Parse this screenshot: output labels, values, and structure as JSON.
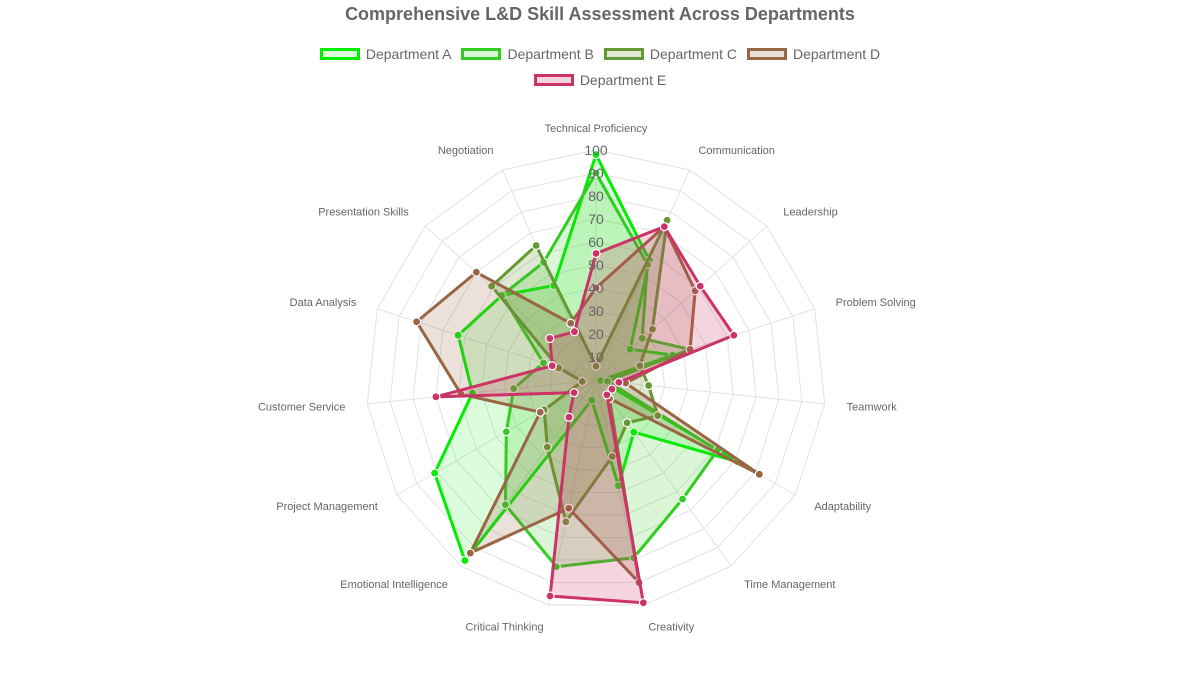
{
  "chart_data": {
    "type": "radar",
    "title": "Comprehensive L&D Skill Assessment Across Departments",
    "categories": [
      "Technical Proficiency",
      "Communication",
      "Leadership",
      "Problem Solving",
      "Teamwork",
      "Adaptability",
      "Time Management",
      "Creativity",
      "Critical Thinking",
      "Emotional Intelligence",
      "Project Management",
      "Customer Service",
      "Data Analysis",
      "Presentation Skills",
      "Negotiation"
    ],
    "r_range": [
      0,
      100
    ],
    "ticks": [
      10,
      20,
      30,
      40,
      50,
      60,
      70,
      80,
      90,
      100
    ],
    "grid": true,
    "legend_position": "top",
    "series": [
      {
        "name": "Department A",
        "color": "#00ee00",
        "fill": "rgba(0,238,0,0.14)",
        "values": [
          98,
          57,
          20,
          35,
          2,
          71,
          28,
          47,
          9,
          97,
          81,
          54,
          63,
          55,
          45
        ]
      },
      {
        "name": "Department B",
        "color": "#33cc22",
        "fill": "rgba(51,204,34,0.18)",
        "values": [
          90,
          55,
          27,
          43,
          5,
          61,
          64,
          79,
          83,
          67,
          45,
          36,
          24,
          55,
          56
        ]
      },
      {
        "name": "Department C",
        "color": "#669933",
        "fill": "rgba(102,153,51,0.22)",
        "values": [
          6,
          76,
          33,
          20,
          23,
          31,
          23,
          34,
          63,
          36,
          26,
          6,
          17,
          61,
          64
        ]
      },
      {
        "name": "Department D",
        "color": "#996644",
        "fill": "rgba(153,102,68,0.2)",
        "values": [
          40,
          73,
          58,
          43,
          13,
          82,
          10,
          90,
          57,
          93,
          28,
          59,
          82,
          70,
          27
        ]
      },
      {
        "name": "Department E",
        "color": "#cc3366",
        "fill": "rgba(204,51,102,0.2)",
        "values": [
          55,
          73,
          61,
          63,
          10,
          8,
          8,
          99,
          96,
          20,
          11,
          70,
          20,
          27,
          23
        ]
      }
    ]
  }
}
